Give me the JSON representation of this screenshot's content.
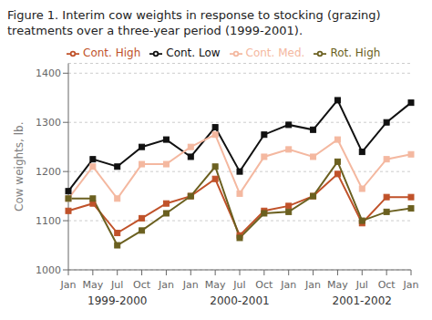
{
  "chart_data": {
    "type": "line",
    "title": "Figure 1. Interim cow weights in response to stocking (grazing)\ntreatments over a three-year period (1999-2001).",
    "y_label": "Cow weights, lb.",
    "categories": [
      "Jan",
      "May",
      "Jul",
      "Oct",
      "Jan",
      "Jan",
      "May",
      "Jul",
      "Oct",
      "Jan",
      "Jan",
      "May",
      "Jul",
      "Oct",
      "Jan"
    ],
    "annotations": [
      "1999-2000",
      "2000-2001",
      "2001-2002"
    ],
    "series": [
      {
        "name": "Cont. Low",
        "color": "#111111",
        "marker": "square",
        "values": [
          1160,
          1225,
          1210,
          1250,
          1265,
          1230,
          1290,
          1200,
          1275,
          1295,
          1285,
          1345,
          1240,
          1300,
          1340
        ]
      },
      {
        "name": "Cont. Med.",
        "color": "#f4b8a0",
        "marker": "square",
        "values": [
          1145,
          1210,
          1145,
          1215,
          1215,
          1250,
          1275,
          1155,
          1230,
          1245,
          1230,
          1265,
          1165,
          1225,
          1235
        ]
      },
      {
        "name": "Cont. High",
        "color": "#c0522a",
        "marker": "square",
        "values": [
          1120,
          1135,
          1075,
          1105,
          1135,
          1150,
          1185,
          1070,
          1120,
          1130,
          1150,
          1195,
          1095,
          1148,
          1148
        ]
      },
      {
        "name": "Rot. High",
        "color": "#6b6020",
        "marker": "square",
        "values": [
          1145,
          1145,
          1050,
          1080,
          1115,
          1150,
          1210,
          1065,
          1115,
          1118,
          1150,
          1220,
          1100,
          1118,
          1125
        ]
      }
    ],
    "ylim": [
      1000,
      1420
    ],
    "yticks": [
      1000,
      1100,
      1200,
      1300,
      1400
    ],
    "grid": true,
    "legend": "upper left"
  }
}
